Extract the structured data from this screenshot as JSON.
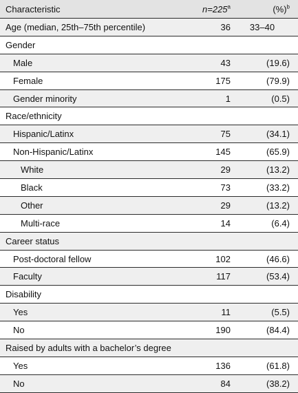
{
  "header": {
    "characteristic": "Characteristic",
    "n_label": "n=225",
    "n_sup": "a",
    "pct_label": "(%)",
    "pct_sup": "b"
  },
  "rows": [
    {
      "label": "Age (median, 25th–75th percentile)",
      "n": "36",
      "pct": "33–40"
    },
    {
      "label": "Gender",
      "n": "",
      "pct": ""
    },
    {
      "label": "Male",
      "n": "43",
      "pct": "(19.6)"
    },
    {
      "label": "Female",
      "n": "175",
      "pct": "(79.9)"
    },
    {
      "label": "Gender minority",
      "n": "1",
      "pct": "(0.5)"
    },
    {
      "label": "Race/ethnicity",
      "n": "",
      "pct": ""
    },
    {
      "label": "Hispanic/Latinx",
      "n": "75",
      "pct": "(34.1)"
    },
    {
      "label": "Non-Hispanic/Latinx",
      "n": "145",
      "pct": "(65.9)"
    },
    {
      "label": "White",
      "n": "29",
      "pct": "(13.2)"
    },
    {
      "label": "Black",
      "n": "73",
      "pct": "(33.2)"
    },
    {
      "label": "Other",
      "n": "29",
      "pct": "(13.2)"
    },
    {
      "label": "Multi-race",
      "n": "14",
      "pct": "(6.4)"
    },
    {
      "label": "Career status",
      "n": "",
      "pct": ""
    },
    {
      "label": "Post-doctoral fellow",
      "n": "102",
      "pct": "(46.6)"
    },
    {
      "label": "Faculty",
      "n": "117",
      "pct": "(53.4)"
    },
    {
      "label": "Disability",
      "n": "",
      "pct": ""
    },
    {
      "label": "Yes",
      "n": "11",
      "pct": "(5.5)"
    },
    {
      "label": "No",
      "n": "190",
      "pct": "(84.4)"
    },
    {
      "label": "Raised by adults with a bachelor’s degree",
      "n": "",
      "pct": ""
    },
    {
      "label": "Yes",
      "n": "136",
      "pct": "(61.8)"
    },
    {
      "label": "No",
      "n": "84",
      "pct": "(38.2)"
    }
  ]
}
